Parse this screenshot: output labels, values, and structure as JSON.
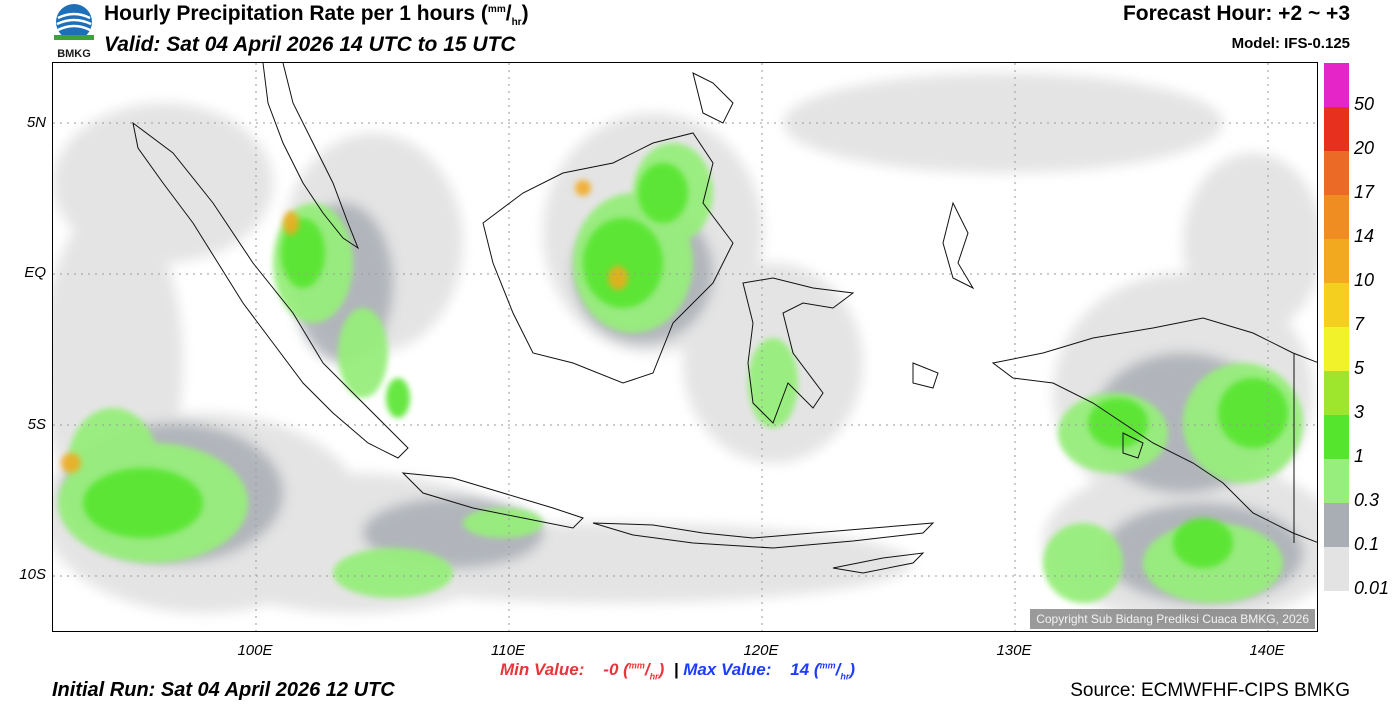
{
  "header": {
    "logo_text": "BMKG",
    "title": "Hourly Precipitation Rate per 1 hours",
    "title_unit_num": "mm",
    "title_unit_den": "hr",
    "valid": "Valid: Sat 04 April 2026 14 UTC to 15 UTC",
    "forecast_hour": "Forecast Hour: +2 ~ +3",
    "model": "Model: IFS-0.125"
  },
  "map": {
    "lat_labels": [
      "5N",
      "EQ",
      "5S",
      "10S"
    ],
    "lon_labels": [
      "100E",
      "110E",
      "120E",
      "130E",
      "140E"
    ],
    "copyright": "Copyright Sub Bidang Prediksi Cuaca BMKG, 2026"
  },
  "legend": {
    "values": [
      "50",
      "20",
      "17",
      "14",
      "10",
      "7",
      "5",
      "3",
      "1",
      "0.3",
      "0.1",
      "0.01"
    ],
    "colors": [
      "#e625c8",
      "#e8301f",
      "#eb6a25",
      "#f08d22",
      "#f3a91f",
      "#f5cf20",
      "#f2f22a",
      "#9ee62d",
      "#56e52d",
      "#97ee7c",
      "#a9adb4",
      "#e3e3e3"
    ]
  },
  "footer": {
    "min_label": "Min Value:",
    "min_value": "-0",
    "max_label": "Max Value:",
    "max_value": "14",
    "unit_num": "mm",
    "unit_den": "hr",
    "separator": "|",
    "initial_run": "Initial Run: Sat 04 April 2026 12 UTC",
    "source": "Source: ECMWFHF-CIPS BMKG"
  }
}
